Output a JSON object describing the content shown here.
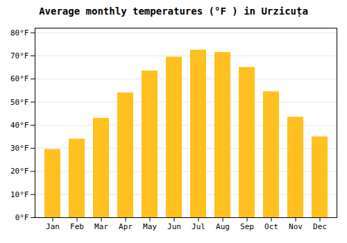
{
  "chart_data": {
    "type": "bar",
    "title": "Average monthly temperatures (°F ) in Urzicuṭa",
    "categories": [
      "Jan",
      "Feb",
      "Mar",
      "Apr",
      "May",
      "Jun",
      "Jul",
      "Aug",
      "Sep",
      "Oct",
      "Nov",
      "Dec"
    ],
    "values": [
      29.5,
      34.0,
      43.0,
      54.0,
      63.5,
      69.5,
      72.5,
      71.5,
      65.0,
      54.5,
      43.5,
      35.0
    ],
    "color": "#FFC020",
    "ylim": [
      0,
      82
    ],
    "yticks": [
      {
        "value": 0,
        "label": "0°F"
      },
      {
        "value": 10,
        "label": "10°F"
      },
      {
        "value": 20,
        "label": "20°F"
      },
      {
        "value": 30,
        "label": "30°F"
      },
      {
        "value": 40,
        "label": "40°F"
      },
      {
        "value": 50,
        "label": "50°F"
      },
      {
        "value": 60,
        "label": "60°F"
      },
      {
        "value": 70,
        "label": "70°F"
      },
      {
        "value": 80,
        "label": "80°F"
      }
    ],
    "grid": true
  }
}
